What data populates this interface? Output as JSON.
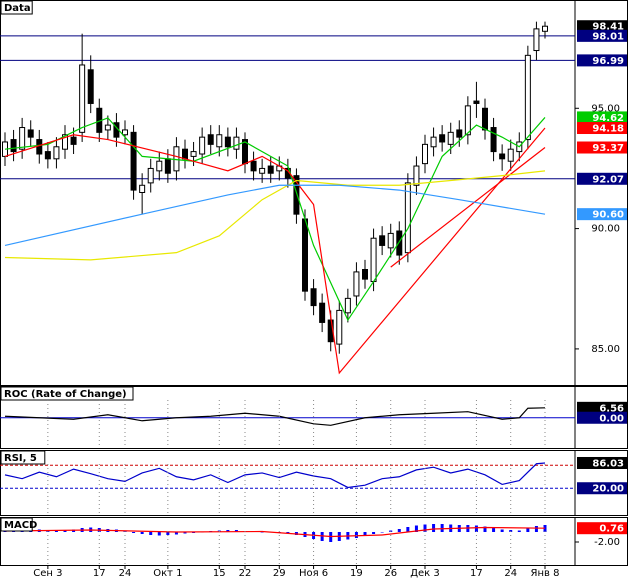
{
  "chart_data": [
    {
      "type": "candlestick",
      "title": "Data",
      "categories": [
        null,
        null,
        null,
        null,
        null,
        "Сен 3",
        null,
        null,
        null,
        null,
        null,
        "17",
        null,
        null,
        "24",
        null,
        null,
        null,
        null,
        "Окт 1",
        null,
        null,
        null,
        null,
        null,
        "15",
        null,
        null,
        "22",
        null,
        null,
        null,
        "29",
        null,
        null,
        null,
        "Ноя 6",
        null,
        null,
        null,
        null,
        "19",
        null,
        null,
        null,
        "26",
        null,
        null,
        null,
        "Дек 3",
        null,
        null,
        null,
        null,
        null,
        "17",
        null,
        null,
        null,
        "24",
        null,
        null,
        null,
        "Янв 8"
      ],
      "open": [
        93.0,
        93.7,
        93.3,
        94.1,
        93.7,
        93.2,
        92.9,
        93.3,
        93.8,
        94.0,
        96.6,
        95.0,
        94.1,
        94.4,
        93.9,
        94.0,
        91.5,
        91.9,
        92.4,
        92.9,
        92.4,
        93.3,
        93.0,
        93.1,
        93.9,
        93.4,
        93.8,
        93.3,
        93.7,
        92.8,
        92.3,
        92.6,
        92.4,
        92.5,
        92.2,
        90.4,
        87.5,
        86.9,
        86.2,
        85.2,
        86.5,
        87.2,
        88.3,
        87.8,
        89.7,
        89.2,
        89.9,
        89.0,
        91.8,
        92.7,
        93.4,
        93.9,
        93.5,
        94.1,
        93.9,
        95.3,
        95.0,
        94.2,
        93.1,
        92.8,
        93.2,
        93.7,
        97.4,
        98.2
      ],
      "high": [
        94.0,
        94.1,
        94.6,
        94.5,
        94.1,
        93.6,
        93.8,
        94.3,
        94.2,
        98.1,
        97.2,
        95.4,
        94.7,
        94.8,
        94.5,
        94.3,
        92.3,
        92.9,
        93.2,
        93.3,
        93.8,
        93.7,
        93.6,
        94.2,
        94.3,
        94.3,
        94.2,
        94.2,
        94.0,
        93.2,
        92.9,
        93.0,
        93.0,
        92.9,
        92.5,
        90.8,
        87.9,
        87.3,
        86.6,
        87.0,
        87.5,
        88.6,
        88.7,
        90.0,
        90.1,
        90.2,
        90.3,
        92.3,
        93.0,
        93.9,
        94.2,
        94.3,
        94.4,
        94.5,
        95.5,
        96.1,
        95.4,
        94.6,
        93.5,
        93.7,
        94.0,
        97.6,
        98.6,
        98.6
      ],
      "low": [
        92.6,
        92.8,
        92.9,
        93.4,
        92.7,
        92.5,
        92.5,
        92.9,
        93.1,
        93.6,
        94.8,
        93.6,
        93.7,
        93.4,
        93.5,
        91.2,
        90.6,
        91.5,
        92.0,
        91.9,
        92.0,
        92.5,
        92.6,
        92.7,
        93.1,
        93.0,
        93.0,
        92.9,
        92.3,
        92.0,
        91.9,
        91.9,
        92.0,
        91.7,
        90.2,
        87.0,
        86.4,
        85.7,
        84.9,
        84.8,
        86.1,
        86.8,
        87.5,
        87.4,
        88.9,
        88.8,
        88.5,
        88.6,
        91.4,
        92.3,
        93.0,
        93.2,
        93.1,
        93.4,
        93.5,
        94.6,
        93.7,
        92.8,
        92.4,
        92.4,
        92.8,
        93.3,
        97.0,
        97.9
      ],
      "close": [
        93.6,
        93.2,
        94.2,
        93.8,
        93.1,
        92.9,
        93.4,
        93.9,
        93.5,
        96.8,
        95.2,
        94.0,
        94.3,
        93.8,
        94.1,
        91.6,
        91.8,
        92.5,
        92.8,
        92.3,
        93.4,
        92.9,
        93.2,
        93.8,
        93.5,
        93.9,
        93.4,
        93.8,
        92.7,
        92.4,
        92.5,
        92.3,
        92.6,
        92.1,
        90.6,
        87.4,
        86.8,
        86.1,
        85.3,
        86.6,
        87.1,
        88.2,
        87.9,
        89.6,
        89.3,
        89.8,
        88.9,
        91.9,
        92.6,
        93.5,
        93.8,
        93.6,
        94.0,
        93.8,
        95.1,
        95.2,
        94.1,
        93.2,
        92.9,
        93.3,
        93.6,
        97.2,
        98.3,
        98.41
      ],
      "series": [
        {
          "color": "#00cc00",
          "x": [
            0,
            5,
            9,
            12,
            16,
            22,
            28,
            33,
            36,
            40,
            43,
            47,
            51,
            55,
            58,
            60,
            63
          ],
          "values": [
            93.3,
            93.5,
            94.2,
            94.6,
            93.0,
            92.8,
            93.6,
            92.6,
            89.3,
            86.2,
            87.8,
            90.0,
            93.0,
            94.3,
            93.8,
            93.4,
            94.62
          ]
        },
        {
          "color": "#ff0000",
          "x": [
            0,
            8,
            12,
            20,
            26,
            30,
            33,
            36,
            39,
            63
          ],
          "values": [
            93.0,
            93.9,
            93.7,
            93.0,
            92.4,
            93.0,
            92.4,
            91.0,
            84.0,
            94.18
          ]
        },
        {
          "color": "#ff0000",
          "x": [
            45,
            63
          ],
          "values": [
            88.4,
            93.37
          ]
        },
        {
          "color": "#e8e800",
          "x": [
            0,
            10,
            20,
            25,
            30,
            34,
            40,
            46,
            52,
            58,
            63
          ],
          "values": [
            88.8,
            88.7,
            89.0,
            89.7,
            91.2,
            92.0,
            91.8,
            91.8,
            92.0,
            92.2,
            92.4
          ]
        },
        {
          "color": "#3399ff",
          "x": [
            0,
            16,
            26,
            32,
            39,
            46,
            53,
            63
          ],
          "values": [
            89.3,
            90.6,
            91.4,
            91.8,
            91.8,
            91.6,
            91.2,
            90.6
          ]
        }
      ],
      "hlines": [
        {
          "value": 98.01,
          "color": "#000080"
        },
        {
          "value": 96.99,
          "color": "#000080"
        },
        {
          "value": 92.07,
          "color": "#000080"
        }
      ],
      "tags": [
        {
          "value": 98.41,
          "color": "#000000"
        },
        {
          "value": 98.01,
          "color": "#000080"
        },
        {
          "value": 96.99,
          "color": "#000080"
        },
        {
          "value": 94.62,
          "color": "#00cc00"
        },
        {
          "value": 94.18,
          "color": "#ff0000"
        },
        {
          "value": 93.37,
          "color": "#ff0000"
        },
        {
          "value": 92.07,
          "color": "#000080"
        },
        {
          "value": 90.6,
          "label": "90.60",
          "color": "#3399ff"
        }
      ],
      "ylim": [
        83.5,
        99.5
      ],
      "yticks": [
        {
          "value": 95,
          "label": "95.00"
        },
        {
          "value": 90,
          "label": "90.00"
        },
        {
          "value": 85,
          "label": "85.00"
        }
      ]
    },
    {
      "type": "line",
      "title": "ROC (Rate of Change)",
      "series": [
        {
          "color": "#000000",
          "x": [
            0,
            4,
            8,
            12,
            16,
            20,
            24,
            28,
            32,
            36,
            38,
            42,
            46,
            50,
            54,
            58,
            60,
            61,
            63
          ],
          "values": [
            1,
            0,
            -1,
            2,
            -2,
            0,
            1,
            3,
            1,
            -4,
            -5,
            0,
            2,
            3,
            4,
            -1,
            0,
            6.3,
            6.56
          ]
        }
      ],
      "hlines": [
        {
          "value": 0,
          "color": "#0000cc"
        }
      ],
      "tags": [
        {
          "value": 6.56,
          "color": "#000000"
        },
        {
          "value": 0,
          "label": "0.00",
          "color": "#000080"
        }
      ],
      "ylim": [
        -20,
        21
      ]
    },
    {
      "type": "line",
      "title": "RSI, 5",
      "series": [
        {
          "color": "#0000cc",
          "x": [
            0,
            2,
            4,
            6,
            8,
            10,
            12,
            14,
            16,
            18,
            20,
            22,
            24,
            26,
            28,
            30,
            32,
            34,
            36,
            38,
            40,
            42,
            44,
            46,
            48,
            50,
            52,
            54,
            56,
            58,
            60,
            62,
            63
          ],
          "values": [
            55,
            45,
            62,
            50,
            70,
            58,
            45,
            38,
            60,
            72,
            50,
            42,
            55,
            35,
            55,
            60,
            48,
            62,
            52,
            45,
            22,
            28,
            45,
            50,
            68,
            75,
            60,
            70,
            55,
            30,
            40,
            84,
            86.03
          ]
        }
      ],
      "hlines": [
        {
          "value": 80,
          "color": "#cc0000",
          "dashed": true
        },
        {
          "value": 20,
          "color": "#0000cc",
          "dashed": true
        }
      ],
      "tags": [
        {
          "value": 86.03,
          "color": "#000000"
        },
        {
          "value": 20,
          "label": "20.00",
          "color": "#000080"
        }
      ],
      "ylim": [
        -50,
        120
      ]
    },
    {
      "type": "bar",
      "title": "MACD",
      "color": "#0000ff",
      "values": [
        0.5,
        0.6,
        0.7,
        0.6,
        0.5,
        0.4,
        0.3,
        0.4,
        0.5,
        0.8,
        0.9,
        0.8,
        0.6,
        0.5,
        0.3,
        -0.2,
        -0.4,
        -0.6,
        -0.7,
        -0.6,
        -0.5,
        -0.3,
        -0.2,
        0.0,
        0.2,
        0.3,
        0.4,
        0.4,
        0.2,
        0.1,
        0.0,
        -0.1,
        -0.1,
        -0.3,
        -0.6,
        -1.0,
        -1.4,
        -1.8,
        -2.0,
        -1.8,
        -1.5,
        -1.2,
        -0.8,
        -0.4,
        0.0,
        0.3,
        0.6,
        1.0,
        1.3,
        1.5,
        1.6,
        1.6,
        1.5,
        1.4,
        1.4,
        1.3,
        1.1,
        0.8,
        0.5,
        0.4,
        0.3,
        0.8,
        1.2,
        1.4
      ],
      "series": [
        {
          "color": "#ff0000",
          "x": [
            0,
            10,
            20,
            30,
            38,
            44,
            50,
            56,
            63
          ],
          "values": [
            0.2,
            0.4,
            0.0,
            0.1,
            -0.9,
            -0.6,
            0.6,
            0.9,
            0.76
          ]
        }
      ],
      "tags": [
        {
          "value": 0.76,
          "color": "#ff0000"
        }
      ],
      "ylim": [
        -6.6,
        3
      ],
      "yticks": [
        {
          "value": -2,
          "label": "-2.00"
        }
      ]
    }
  ]
}
